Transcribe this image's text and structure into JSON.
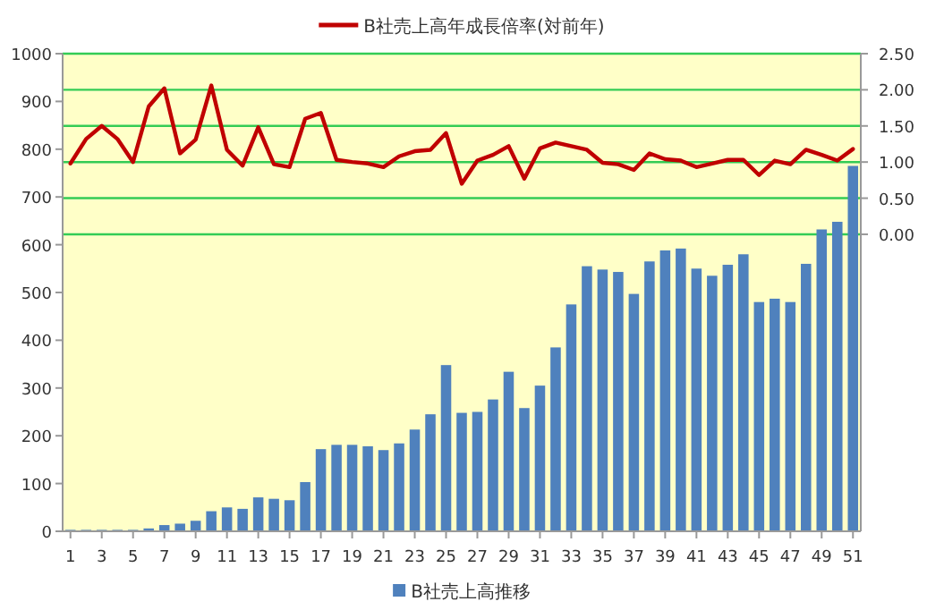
{
  "chart_data": {
    "type": "bar",
    "x": [
      1,
      2,
      3,
      4,
      5,
      6,
      7,
      8,
      9,
      10,
      11,
      12,
      13,
      14,
      15,
      16,
      17,
      18,
      19,
      20,
      21,
      22,
      23,
      24,
      25,
      26,
      27,
      28,
      29,
      30,
      31,
      32,
      33,
      34,
      35,
      36,
      37,
      38,
      39,
      40,
      41,
      42,
      43,
      44,
      45,
      46,
      47,
      48,
      49,
      50,
      51
    ],
    "xlim": [
      0.5,
      51.5
    ],
    "xticks": [
      1,
      3,
      5,
      7,
      9,
      11,
      13,
      15,
      17,
      19,
      21,
      23,
      25,
      27,
      29,
      31,
      33,
      35,
      37,
      39,
      41,
      43,
      45,
      47,
      49,
      51
    ],
    "series": [
      {
        "name": "B社売上高推移",
        "color": "#4f81bd",
        "values": [
          3,
          3,
          3,
          3,
          3,
          6,
          13,
          16,
          22,
          42,
          50,
          47,
          71,
          68,
          65,
          103,
          172,
          181,
          181,
          178,
          170,
          184,
          213,
          245,
          348,
          248,
          250,
          276,
          334,
          258,
          305,
          385,
          475,
          555,
          548,
          543,
          497,
          565,
          588,
          592,
          550,
          535,
          558,
          580,
          480,
          487,
          480,
          560,
          632,
          648,
          765
        ]
      },
      {
        "name": "B社売上高年成長倍率(対前年)",
        "type": "line",
        "axis": "y2",
        "color": "#c00000",
        "values": [
          0.98,
          1.32,
          1.5,
          1.32,
          1.0,
          1.77,
          2.02,
          1.12,
          1.31,
          2.06,
          1.17,
          0.95,
          1.48,
          0.97,
          0.93,
          1.6,
          1.68,
          1.03,
          1.0,
          0.98,
          0.93,
          1.08,
          1.15,
          1.17,
          1.4,
          0.7,
          1.02,
          1.1,
          1.22,
          0.77,
          1.19,
          1.27,
          1.22,
          1.17,
          0.99,
          0.97,
          0.89,
          1.12,
          1.04,
          1.02,
          0.93,
          0.98,
          1.03,
          1.03,
          0.82,
          1.02,
          0.97,
          1.17,
          1.1,
          1.02,
          1.18
        ]
      }
    ],
    "ylim": [
      0,
      1000
    ],
    "yticks": [
      0,
      100,
      200,
      300,
      400,
      500,
      600,
      700,
      800,
      900,
      1000
    ],
    "y2lim": [
      -4.11,
      2.5
    ],
    "y2ticks": [
      {
        "value": 0,
        "label": "0.00"
      },
      {
        "value": 0.5,
        "label": "0.50"
      },
      {
        "value": 1,
        "label": "1.00"
      },
      {
        "value": 1.5,
        "label": "1.50"
      },
      {
        "value": 2,
        "label": "2.00"
      },
      {
        "value": 2.5,
        "label": "2.50"
      }
    ],
    "grid": "y2",
    "legend": "bottom"
  }
}
